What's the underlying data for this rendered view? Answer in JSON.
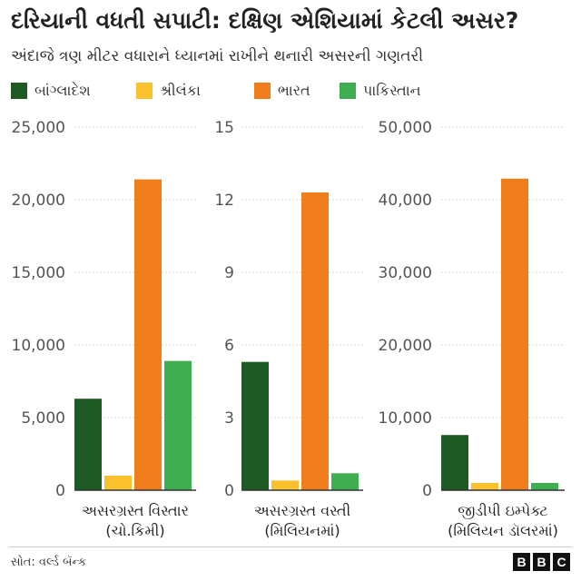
{
  "title": "દરિયાની વધતી સપાટી: દક્ષિણ એશિયામાં કેટલી અસર?",
  "subtitle": "અંદાજે ત્રણ મીટર વધારાને ધ્યાનમાં રાખીને થનારી અસરની ગણતરી",
  "legend": [
    {
      "label": "બાંગ્લાદેશ",
      "color": "#1e5a23"
    },
    {
      "label": "શ્રીલંકા",
      "color": "#fbc02d"
    },
    {
      "label": "ભારત",
      "color": "#f07e1d"
    },
    {
      "label": "પાકિસ્તાન",
      "color": "#3eae50"
    }
  ],
  "chart_data": [
    {
      "type": "bar",
      "title": "",
      "xlabel": [
        "અસરગ્રસ્ત વિસ્તાર",
        "(ચો.કિમી)"
      ],
      "categories": [
        "બાંગ્લાદેશ",
        "શ્રીલંકા",
        "ભારત",
        "પાકિસ્તાન"
      ],
      "values": [
        6300,
        1000,
        21400,
        8900
      ],
      "ylim": [
        0,
        25000
      ],
      "ticks": [
        0,
        5000,
        10000,
        15000,
        20000,
        25000
      ],
      "tick_labels": [
        "0",
        "5,000",
        "10,000",
        "15,000",
        "20,000",
        "25,000"
      ],
      "colors": [
        "#1e5a23",
        "#fbc02d",
        "#f07e1d",
        "#3eae50"
      ]
    },
    {
      "type": "bar",
      "title": "",
      "xlabel": [
        "અસરગ્રસ્ત વસ્તી",
        "(મિલિયનમાં)"
      ],
      "categories": [
        "બાંગ્લાદેશ",
        "શ્રીલંકા",
        "ભારત",
        "પાકિસ્તાન"
      ],
      "values": [
        5.3,
        0.4,
        12.3,
        0.7
      ],
      "ylim": [
        0,
        15
      ],
      "ticks": [
        0,
        3,
        6,
        9,
        12,
        15
      ],
      "tick_labels": [
        "0",
        "3",
        "6",
        "9",
        "12",
        "15"
      ],
      "colors": [
        "#1e5a23",
        "#fbc02d",
        "#f07e1d",
        "#3eae50"
      ]
    },
    {
      "type": "bar",
      "title": "",
      "xlabel": [
        "જીડીપી ઇમ્પેક્ટ",
        "(મિલિયન ડૉલરમાં)"
      ],
      "categories": [
        "બાંગ્લાદેશ",
        "શ્રીલંકા",
        "ભારત",
        "પાકિસ્તાન"
      ],
      "values": [
        7600,
        1000,
        42900,
        1000
      ],
      "ylim": [
        0,
        50000
      ],
      "ticks": [
        0,
        10000,
        20000,
        30000,
        40000,
        50000
      ],
      "tick_labels": [
        "0",
        "10,000",
        "20,000",
        "30,000",
        "40,000",
        "50,000"
      ],
      "colors": [
        "#1e5a23",
        "#fbc02d",
        "#f07e1d",
        "#3eae50"
      ]
    }
  ],
  "footer": {
    "source": "સોત: વર્લ્ડ બૅન્ક",
    "logo": [
      "B",
      "B",
      "C"
    ]
  }
}
